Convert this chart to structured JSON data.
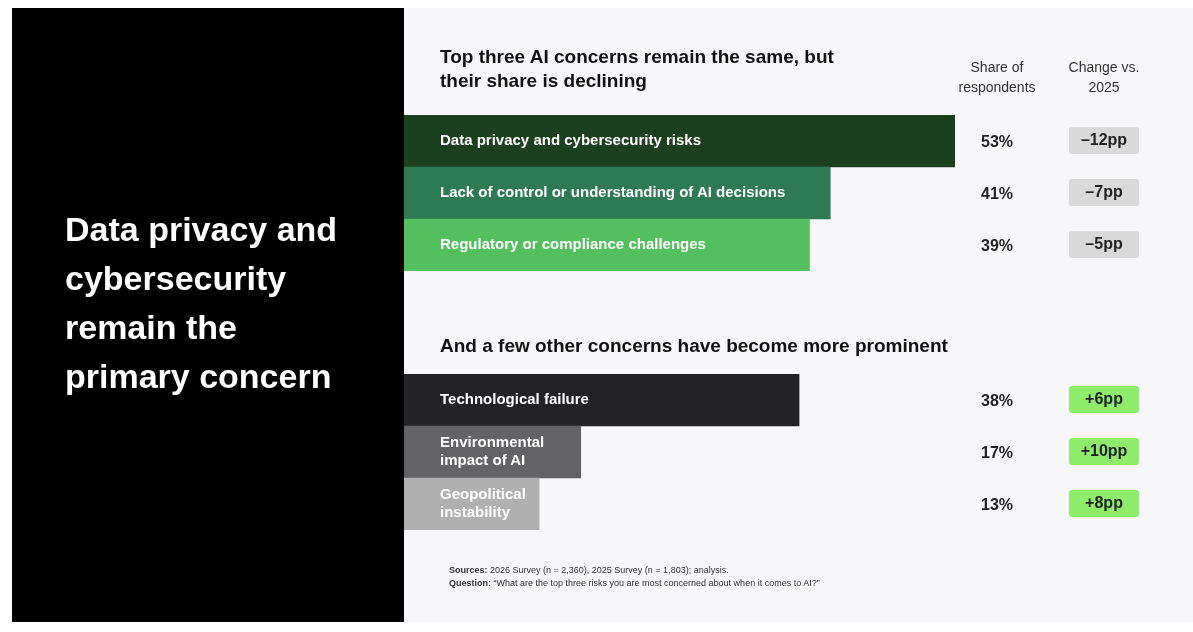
{
  "chart_data": [
    {
      "type": "other",
      "title": "Data privacy and cybersecurity remain the primary concern"
    },
    {
      "type": "bar",
      "orientation": "horizontal",
      "title": "Top three AI concerns remain the same, but their share is declining",
      "categories": [
        "Data privacy and cybersecurity risks",
        "Lack of control or understanding of AI decisions",
        "Regulatory or compliance challenges"
      ],
      "series": [
        {
          "name": "Share of respondents",
          "colors": [
            "#1c3f1d",
            "#2e7a53",
            "#53bf5f"
          ],
          "values": [
            53,
            41,
            39
          ],
          "value_labels": [
            "53%",
            "41%",
            "39%"
          ]
        }
      ],
      "annotations": [
        "Change vs. 2025",
        "–12pp",
        "–7pp",
        "–5pp"
      ]
    },
    {
      "type": "bar",
      "orientation": "horizontal",
      "title": "And a few other concerns have become more prominent",
      "categories": [
        "Technological failure",
        "Environmental impact of AI",
        "Geopolitical instability"
      ],
      "series": [
        {
          "colors": [
            "#232325",
            "#636366",
            "#b0b0b0"
          ],
          "values": [
            38,
            17,
            13
          ],
          "value_labels": [
            "38%",
            "17%",
            "13%"
          ]
        }
      ],
      "annotations": [
        "+6pp",
        "+10pp",
        "+8pp",
        "Sources: 2026 Survey (n = 2,360), 2025 Survey (n = 1,803); analysis.",
        "Question: “What are the top three risks you are most concerned about when it comes to AI?”"
      ]
    }
  ]
}
